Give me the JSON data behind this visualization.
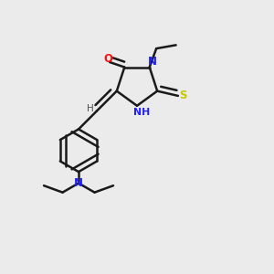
{
  "bg_color": "#ebebeb",
  "bond_color": "#1a1a1a",
  "N_color": "#2020ff",
  "O_color": "#ff1010",
  "S_color": "#c8c800",
  "H_color": "#505050",
  "lw": 1.8,
  "dbs": 0.018,
  "fig_w": 3.0,
  "fig_h": 3.0,
  "dpi": 100,
  "xlim": [
    0.05,
    0.95
  ],
  "ylim": [
    0.02,
    0.98
  ]
}
